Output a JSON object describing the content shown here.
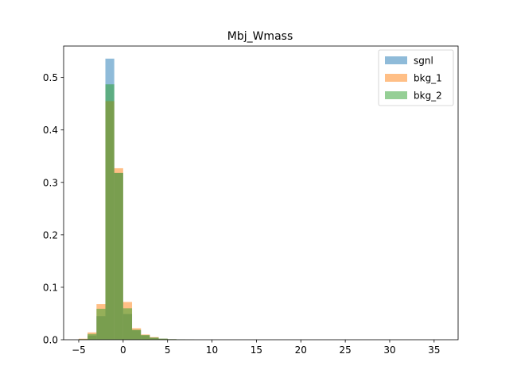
{
  "chart_data": {
    "type": "bar",
    "subtype": "overlaid-histogram",
    "title": "Mbj_Wmass",
    "xlabel": "",
    "ylabel": "",
    "xlim": [
      -6.7,
      37.7
    ],
    "ylim": [
      0,
      0.56
    ],
    "xticks": [
      -5,
      0,
      5,
      10,
      15,
      20,
      25,
      30,
      35
    ],
    "yticks": [
      0.0,
      0.1,
      0.2,
      0.3,
      0.4,
      0.5
    ],
    "bin_edges": [
      -5,
      -4,
      -3,
      -2,
      -1,
      0,
      1,
      2,
      3,
      4,
      5,
      6,
      7,
      8
    ],
    "grid": false,
    "legend_position": "top-right",
    "series": [
      {
        "name": "sgnl",
        "color": "#1f77b4",
        "alpha": 0.5,
        "values": [
          0.001,
          0.008,
          0.045,
          0.536,
          0.318,
          0.049,
          0.018,
          0.008,
          0.004,
          0.002,
          0.001,
          0.0005,
          0.0002
        ]
      },
      {
        "name": "bkg_1",
        "color": "#ff7f0e",
        "alpha": 0.5,
        "values": [
          0.002,
          0.014,
          0.068,
          0.455,
          0.327,
          0.072,
          0.022,
          0.01,
          0.005,
          0.002,
          0.001,
          0.0005,
          0.0002
        ]
      },
      {
        "name": "bkg_2",
        "color": "#2ca02c",
        "alpha": 0.5,
        "values": [
          0.001,
          0.011,
          0.059,
          0.487,
          0.318,
          0.06,
          0.019,
          0.009,
          0.004,
          0.002,
          0.001,
          0.0005,
          0.0002
        ]
      }
    ]
  }
}
